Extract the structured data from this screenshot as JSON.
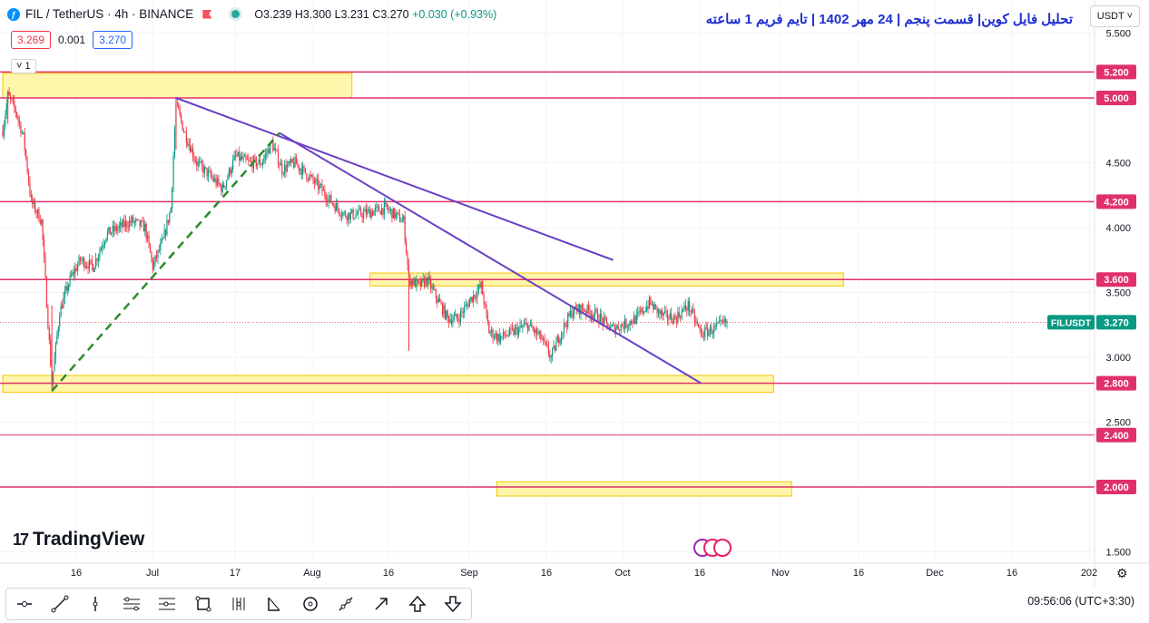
{
  "header": {
    "symbol": "FIL / TetherUS · 4h · BINANCE",
    "logo": "ƒ",
    "open": "O3.239",
    "high": "H3.300",
    "low": "L3.231",
    "close": "C3.270",
    "change": "+0.030 (+0.93%)",
    "bid": "3.269",
    "spread": "0.001",
    "ask": "3.270",
    "indicator_count": "1"
  },
  "title_fa": "تحلیل فایل کوین| قسمت پنجم | 24 مهر 1402 | تایم فریم 1 ساعته",
  "currency_button": "USDT ˅",
  "brand": "TradingView",
  "clock": "09:56:06 (UTC+3:30)",
  "icons": {
    "toolbar": [
      "crosshair-icon",
      "trend-line-icon",
      "vertical-line-icon",
      "pitchfork-icon",
      "fib-retracement-icon",
      "rectangle-icon",
      "gann-icon",
      "pattern-icon",
      "circle-icon",
      "brush-icon",
      "arrow-marker-icon",
      "arrow-up-icon",
      "arrow-down-icon"
    ],
    "settings": "gear-icon"
  },
  "colors": {
    "level_line": "#e0306a",
    "zone_fill": "#fff59d",
    "zone_border": "#f5c400",
    "trendline": "#6a3fc4",
    "support_dash": "#2e8b2e",
    "up": "#089981",
    "down": "#f23645",
    "last_price_bg": "#089981"
  },
  "chart_data": {
    "type": "candlestick",
    "symbol": "FILUSDT",
    "last_price": "3.270",
    "price_axis_ticks": [
      "5.500",
      "4.500",
      "4.000",
      "3.500",
      "3.000",
      "2.500",
      "1.500"
    ],
    "level_labels": [
      "5.200",
      "5.000",
      "4.200",
      "3.600",
      "2.800",
      "2.400",
      "2.000"
    ],
    "time_axis_ticks": [
      "16",
      "Jul",
      "17",
      "Aug",
      "16",
      "Sep",
      "16",
      "Oct",
      "16",
      "Nov",
      "16",
      "Dec",
      "16",
      "202"
    ],
    "levels": [
      5.2,
      5.0,
      4.2,
      3.6,
      2.8,
      2.4,
      2.0
    ],
    "zones": [
      {
        "from_day": 0,
        "to_day": 135,
        "low": 5.0,
        "high": 5.19
      },
      {
        "from_day": 142,
        "to_day": 325,
        "low": 3.55,
        "high": 3.65
      },
      {
        "from_day": 0,
        "to_day": 298,
        "low": 2.73,
        "high": 2.86
      },
      {
        "from_day": 191,
        "to_day": 305,
        "low": 1.93,
        "high": 2.04
      }
    ],
    "trendlines": [
      {
        "from": [
          67,
          5.0
        ],
        "to": [
          236,
          3.75
        ]
      },
      {
        "from": [
          107,
          4.73
        ],
        "to": [
          270,
          2.8
        ]
      }
    ],
    "dashed_support": {
      "from": [
        19,
        2.74
      ],
      "to": [
        107,
        4.73
      ]
    },
    "anchors": [
      [
        0,
        4.75
      ],
      [
        2,
        5.02
      ],
      [
        5,
        4.9
      ],
      [
        8,
        4.7
      ],
      [
        11,
        4.2
      ],
      [
        15,
        4.05
      ],
      [
        19,
        2.8
      ],
      [
        22,
        3.35
      ],
      [
        26,
        3.6
      ],
      [
        30,
        3.75
      ],
      [
        35,
        3.7
      ],
      [
        40,
        3.95
      ],
      [
        45,
        4.0
      ],
      [
        50,
        4.05
      ],
      [
        55,
        4.0
      ],
      [
        58,
        3.7
      ],
      [
        62,
        3.9
      ],
      [
        65,
        4.15
      ],
      [
        67,
        4.95
      ],
      [
        70,
        4.75
      ],
      [
        75,
        4.5
      ],
      [
        80,
        4.4
      ],
      [
        85,
        4.3
      ],
      [
        90,
        4.55
      ],
      [
        95,
        4.5
      ],
      [
        100,
        4.5
      ],
      [
        104,
        4.65
      ],
      [
        108,
        4.45
      ],
      [
        113,
        4.5
      ],
      [
        118,
        4.4
      ],
      [
        123,
        4.3
      ],
      [
        127,
        4.2
      ],
      [
        132,
        4.1
      ],
      [
        137,
        4.1
      ],
      [
        142,
        4.12
      ],
      [
        148,
        4.15
      ],
      [
        155,
        4.05
      ],
      [
        157,
        3.6
      ],
      [
        161,
        3.55
      ],
      [
        164,
        3.6
      ],
      [
        168,
        3.45
      ],
      [
        172,
        3.3
      ],
      [
        176,
        3.3
      ],
      [
        181,
        3.45
      ],
      [
        185,
        3.55
      ],
      [
        188,
        3.2
      ],
      [
        192,
        3.15
      ],
      [
        198,
        3.2
      ],
      [
        203,
        3.25
      ],
      [
        208,
        3.15
      ],
      [
        212,
        3.0
      ],
      [
        216,
        3.2
      ],
      [
        220,
        3.35
      ],
      [
        224,
        3.38
      ],
      [
        230,
        3.32
      ],
      [
        235,
        3.22
      ],
      [
        240,
        3.25
      ],
      [
        245,
        3.3
      ],
      [
        250,
        3.42
      ],
      [
        255,
        3.32
      ],
      [
        260,
        3.3
      ],
      [
        265,
        3.4
      ],
      [
        270,
        3.18
      ],
      [
        275,
        3.22
      ],
      [
        280,
        3.27
      ]
    ],
    "days_per_axis_day": 1
  }
}
